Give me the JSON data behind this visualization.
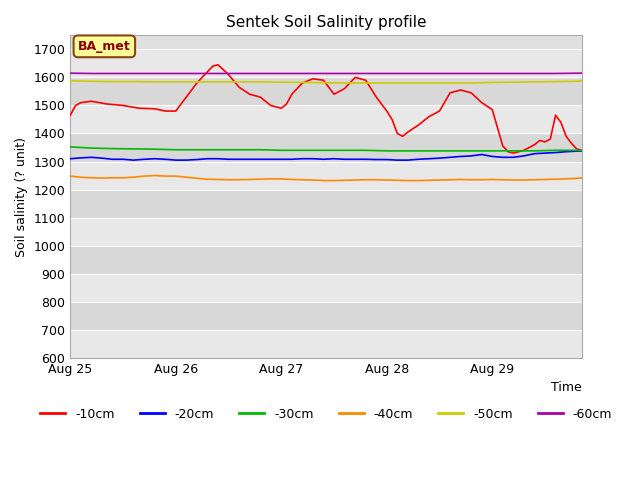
{
  "title": "Sentek Soil Salinity profile",
  "xlabel": "Time",
  "ylabel": "Soil salinity (? unit)",
  "ylim": [
    600,
    1750
  ],
  "yticks": [
    600,
    700,
    800,
    900,
    1000,
    1100,
    1200,
    1300,
    1400,
    1500,
    1600,
    1700
  ],
  "plot_bg_color": "#d8d8d8",
  "band_color_light": "#e8e8e8",
  "band_color_dark": "#d0d0d0",
  "annotation_text": "BA_met",
  "annotation_bg": "#ffff99",
  "annotation_border": "#8B4513",
  "series": {
    "-10cm": {
      "color": "#ff0000",
      "points": [
        [
          0.0,
          1465
        ],
        [
          0.05,
          1500
        ],
        [
          0.1,
          1510
        ],
        [
          0.2,
          1515
        ],
        [
          0.35,
          1505
        ],
        [
          0.5,
          1500
        ],
        [
          0.65,
          1490
        ],
        [
          0.8,
          1488
        ],
        [
          0.9,
          1480
        ],
        [
          1.0,
          1480
        ],
        [
          1.1,
          1530
        ],
        [
          1.2,
          1580
        ],
        [
          1.35,
          1640
        ],
        [
          1.4,
          1645
        ],
        [
          1.5,
          1610
        ],
        [
          1.6,
          1565
        ],
        [
          1.7,
          1540
        ],
        [
          1.8,
          1530
        ],
        [
          1.9,
          1500
        ],
        [
          2.0,
          1490
        ],
        [
          2.05,
          1505
        ],
        [
          2.1,
          1540
        ],
        [
          2.2,
          1580
        ],
        [
          2.3,
          1595
        ],
        [
          2.4,
          1590
        ],
        [
          2.5,
          1540
        ],
        [
          2.6,
          1560
        ],
        [
          2.65,
          1580
        ],
        [
          2.7,
          1600
        ],
        [
          2.8,
          1590
        ],
        [
          2.9,
          1530
        ],
        [
          3.0,
          1480
        ],
        [
          3.05,
          1450
        ],
        [
          3.1,
          1400
        ],
        [
          3.15,
          1390
        ],
        [
          3.2,
          1405
        ],
        [
          3.3,
          1430
        ],
        [
          3.4,
          1460
        ],
        [
          3.5,
          1480
        ],
        [
          3.6,
          1545
        ],
        [
          3.7,
          1555
        ],
        [
          3.8,
          1545
        ],
        [
          3.9,
          1510
        ],
        [
          4.0,
          1485
        ],
        [
          4.05,
          1420
        ],
        [
          4.1,
          1355
        ],
        [
          4.15,
          1335
        ],
        [
          4.2,
          1330
        ],
        [
          4.3,
          1340
        ],
        [
          4.4,
          1360
        ],
        [
          4.45,
          1375
        ],
        [
          4.5,
          1370
        ],
        [
          4.55,
          1380
        ],
        [
          4.6,
          1465
        ],
        [
          4.65,
          1440
        ],
        [
          4.7,
          1390
        ],
        [
          4.75,
          1365
        ],
        [
          4.8,
          1345
        ],
        [
          4.85,
          1340
        ]
      ]
    },
    "-20cm": {
      "color": "#0000ff",
      "points": [
        [
          0.0,
          1310
        ],
        [
          0.1,
          1313
        ],
        [
          0.2,
          1315
        ],
        [
          0.3,
          1312
        ],
        [
          0.4,
          1308
        ],
        [
          0.5,
          1308
        ],
        [
          0.6,
          1305
        ],
        [
          0.7,
          1308
        ],
        [
          0.8,
          1310
        ],
        [
          0.9,
          1308
        ],
        [
          1.0,
          1305
        ],
        [
          1.1,
          1305
        ],
        [
          1.2,
          1307
        ],
        [
          1.3,
          1310
        ],
        [
          1.4,
          1310
        ],
        [
          1.5,
          1308
        ],
        [
          1.6,
          1308
        ],
        [
          1.7,
          1308
        ],
        [
          1.8,
          1308
        ],
        [
          1.9,
          1308
        ],
        [
          2.0,
          1308
        ],
        [
          2.1,
          1308
        ],
        [
          2.2,
          1310
        ],
        [
          2.3,
          1310
        ],
        [
          2.4,
          1308
        ],
        [
          2.5,
          1310
        ],
        [
          2.6,
          1308
        ],
        [
          2.7,
          1308
        ],
        [
          2.8,
          1308
        ],
        [
          2.9,
          1307
        ],
        [
          3.0,
          1307
        ],
        [
          3.1,
          1305
        ],
        [
          3.2,
          1305
        ],
        [
          3.3,
          1308
        ],
        [
          3.4,
          1310
        ],
        [
          3.5,
          1312
        ],
        [
          3.6,
          1315
        ],
        [
          3.7,
          1318
        ],
        [
          3.8,
          1320
        ],
        [
          3.9,
          1325
        ],
        [
          4.0,
          1318
        ],
        [
          4.1,
          1315
        ],
        [
          4.2,
          1315
        ],
        [
          4.3,
          1320
        ],
        [
          4.4,
          1328
        ],
        [
          4.5,
          1330
        ],
        [
          4.6,
          1332
        ],
        [
          4.7,
          1335
        ],
        [
          4.8,
          1337
        ],
        [
          4.85,
          1338
        ]
      ]
    },
    "-30cm": {
      "color": "#00bb00",
      "points": [
        [
          0.0,
          1352
        ],
        [
          0.2,
          1348
        ],
        [
          0.4,
          1346
        ],
        [
          0.6,
          1345
        ],
        [
          0.8,
          1344
        ],
        [
          1.0,
          1342
        ],
        [
          1.2,
          1342
        ],
        [
          1.4,
          1342
        ],
        [
          1.6,
          1342
        ],
        [
          1.8,
          1342
        ],
        [
          2.0,
          1340
        ],
        [
          2.2,
          1340
        ],
        [
          2.4,
          1340
        ],
        [
          2.6,
          1340
        ],
        [
          2.8,
          1340
        ],
        [
          3.0,
          1338
        ],
        [
          3.2,
          1338
        ],
        [
          3.4,
          1338
        ],
        [
          3.6,
          1338
        ],
        [
          3.8,
          1338
        ],
        [
          4.0,
          1338
        ],
        [
          4.2,
          1338
        ],
        [
          4.4,
          1338
        ],
        [
          4.6,
          1340
        ],
        [
          4.8,
          1340
        ],
        [
          4.85,
          1340
        ]
      ]
    },
    "-40cm": {
      "color": "#ff8800",
      "points": [
        [
          0.0,
          1248
        ],
        [
          0.1,
          1244
        ],
        [
          0.2,
          1242
        ],
        [
          0.3,
          1241
        ],
        [
          0.4,
          1242
        ],
        [
          0.5,
          1242
        ],
        [
          0.6,
          1244
        ],
        [
          0.7,
          1248
        ],
        [
          0.8,
          1250
        ],
        [
          0.9,
          1248
        ],
        [
          1.0,
          1248
        ],
        [
          1.1,
          1244
        ],
        [
          1.2,
          1240
        ],
        [
          1.3,
          1237
        ],
        [
          1.4,
          1236
        ],
        [
          1.5,
          1235
        ],
        [
          1.6,
          1235
        ],
        [
          1.7,
          1236
        ],
        [
          1.8,
          1237
        ],
        [
          1.9,
          1238
        ],
        [
          2.0,
          1238
        ],
        [
          2.1,
          1236
        ],
        [
          2.2,
          1235
        ],
        [
          2.3,
          1234
        ],
        [
          2.4,
          1232
        ],
        [
          2.5,
          1232
        ],
        [
          2.6,
          1233
        ],
        [
          2.7,
          1234
        ],
        [
          2.8,
          1235
        ],
        [
          2.9,
          1235
        ],
        [
          3.0,
          1234
        ],
        [
          3.1,
          1233
        ],
        [
          3.2,
          1232
        ],
        [
          3.3,
          1232
        ],
        [
          3.4,
          1233
        ],
        [
          3.5,
          1234
        ],
        [
          3.6,
          1235
        ],
        [
          3.7,
          1236
        ],
        [
          3.8,
          1235
        ],
        [
          3.9,
          1235
        ],
        [
          4.0,
          1236
        ],
        [
          4.1,
          1235
        ],
        [
          4.2,
          1234
        ],
        [
          4.3,
          1234
        ],
        [
          4.4,
          1235
        ],
        [
          4.5,
          1236
        ],
        [
          4.6,
          1237
        ],
        [
          4.7,
          1238
        ],
        [
          4.8,
          1240
        ],
        [
          4.85,
          1242
        ]
      ]
    },
    "-50cm": {
      "color": "#cccc00",
      "points": [
        [
          0.0,
          1588
        ],
        [
          0.2,
          1586
        ],
        [
          0.4,
          1585
        ],
        [
          0.6,
          1585
        ],
        [
          0.8,
          1584
        ],
        [
          1.0,
          1584
        ],
        [
          1.2,
          1584
        ],
        [
          1.4,
          1584
        ],
        [
          1.6,
          1584
        ],
        [
          1.8,
          1584
        ],
        [
          2.0,
          1583
        ],
        [
          2.2,
          1582
        ],
        [
          2.4,
          1581
        ],
        [
          2.6,
          1580
        ],
        [
          2.8,
          1580
        ],
        [
          3.0,
          1580
        ],
        [
          3.2,
          1580
        ],
        [
          3.4,
          1580
        ],
        [
          3.6,
          1580
        ],
        [
          3.8,
          1580
        ],
        [
          4.0,
          1582
        ],
        [
          4.2,
          1583
        ],
        [
          4.4,
          1584
        ],
        [
          4.6,
          1585
        ],
        [
          4.8,
          1586
        ],
        [
          4.85,
          1588
        ]
      ]
    },
    "-60cm": {
      "color": "#aa00aa",
      "points": [
        [
          0.0,
          1615
        ],
        [
          0.2,
          1614
        ],
        [
          0.4,
          1614
        ],
        [
          0.6,
          1614
        ],
        [
          0.8,
          1614
        ],
        [
          1.0,
          1614
        ],
        [
          1.2,
          1614
        ],
        [
          1.4,
          1614
        ],
        [
          1.6,
          1614
        ],
        [
          1.8,
          1614
        ],
        [
          2.0,
          1614
        ],
        [
          2.2,
          1614
        ],
        [
          2.4,
          1614
        ],
        [
          2.6,
          1614
        ],
        [
          2.8,
          1614
        ],
        [
          3.0,
          1614
        ],
        [
          3.2,
          1614
        ],
        [
          3.4,
          1614
        ],
        [
          3.6,
          1614
        ],
        [
          3.8,
          1614
        ],
        [
          4.0,
          1614
        ],
        [
          4.2,
          1614
        ],
        [
          4.4,
          1614
        ],
        [
          4.6,
          1614
        ],
        [
          4.8,
          1615
        ],
        [
          4.85,
          1615
        ]
      ]
    }
  },
  "xtick_positions": [
    0.0,
    1.0,
    2.0,
    3.0,
    4.0
  ],
  "xtick_labels": [
    "Aug 25",
    "Aug 26",
    "Aug 27",
    "Aug 28",
    "Aug 29"
  ],
  "legend_order": [
    "-10cm",
    "-20cm",
    "-30cm",
    "-40cm",
    "-50cm",
    "-60cm"
  ]
}
